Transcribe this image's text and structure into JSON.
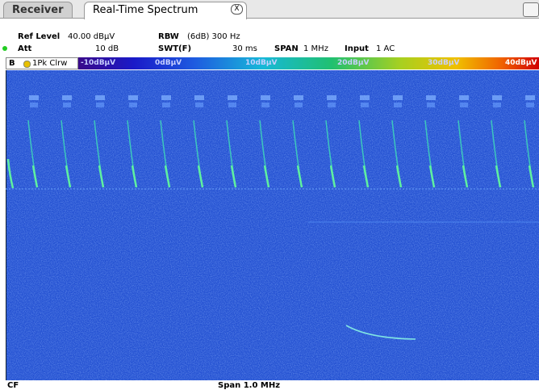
{
  "tabs": {
    "receiver": "Receiver",
    "active": "Real-Time Spectrum",
    "close": "X"
  },
  "settings": {
    "ref_level": {
      "label": "Ref Level",
      "value": "40.00 dBµV"
    },
    "rbw": {
      "label": "RBW",
      "value": "(6dB) 300 Hz"
    },
    "att": {
      "label": "Att",
      "value": "10 dB"
    },
    "swt": {
      "label": "SWT(F)",
      "value": "30 ms"
    },
    "span": {
      "label": "SPAN",
      "value": "1 MHz"
    },
    "input": {
      "label": "Input",
      "value": "1 AC"
    }
  },
  "trace": {
    "window": "B",
    "label": "1Pk Clrw"
  },
  "color_scale": [
    "-10dBµV",
    "0dBµV",
    "10dBµV",
    "20dBµV",
    "30dBµV",
    "40dBµV"
  ],
  "footer": {
    "left": "CF",
    "center": "Span 1.0 MHz"
  }
}
